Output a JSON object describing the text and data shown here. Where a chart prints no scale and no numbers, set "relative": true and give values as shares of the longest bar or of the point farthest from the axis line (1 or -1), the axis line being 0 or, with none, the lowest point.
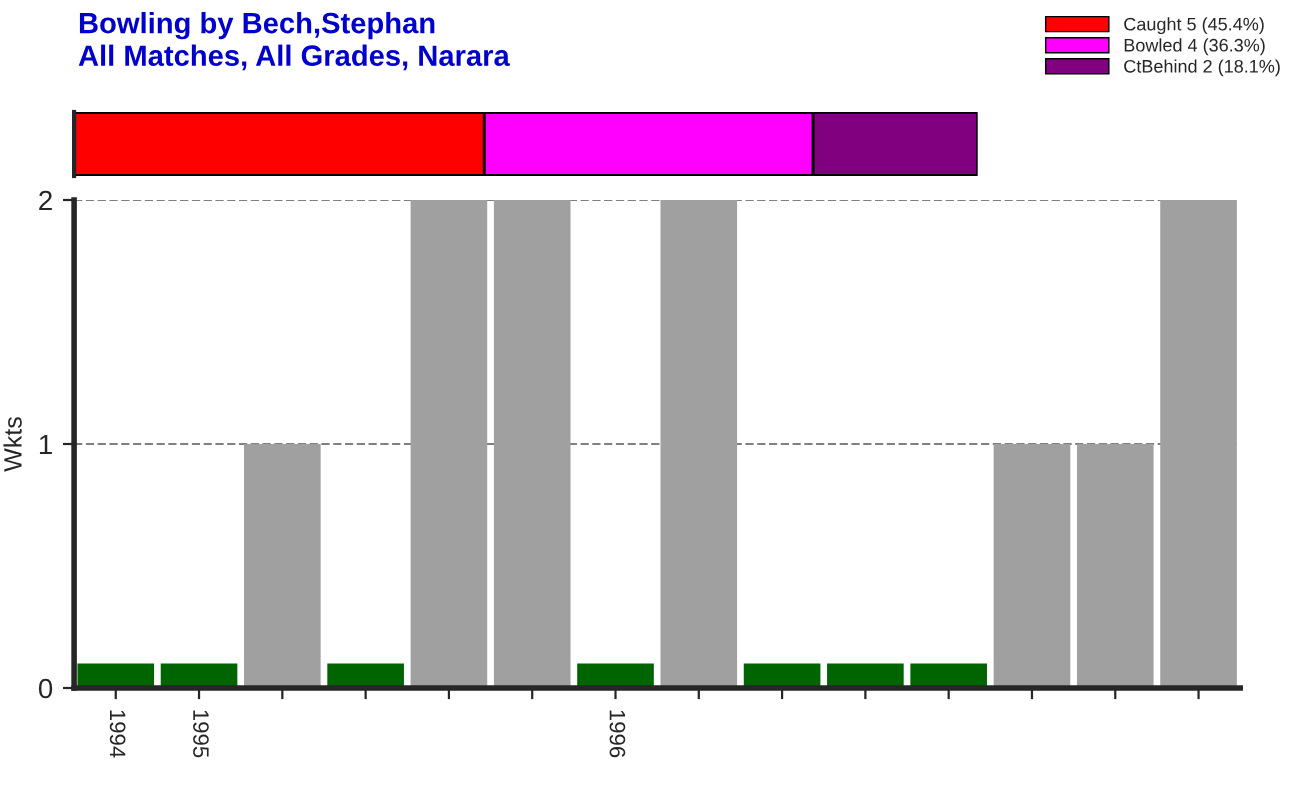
{
  "chart_data": [
    {
      "type": "bar",
      "orientation": "horizontal",
      "stacked": true,
      "relative": true,
      "title": "Bowling by Bech,Stephan\nAll Matches, All Grades, Narara",
      "categories": [
        null
      ],
      "legend": "top right",
      "series": [
        {
          "name": "Caught 5 (45.4%)",
          "color": "#ff0000",
          "values": [
            0.454
          ]
        },
        {
          "name": "Bowled 4 (36.3%)",
          "color": "#ff00ff",
          "values": [
            0.364
          ]
        },
        {
          "name": "CtBehind 2 (18.1%)",
          "color": "#800080",
          "values": [
            0.182
          ]
        }
      ]
    },
    {
      "type": "bar",
      "ylabel": "Wkts",
      "categories": [
        "1994",
        "1995",
        null,
        null,
        null,
        null,
        "1996",
        null,
        null,
        null,
        null,
        null,
        null,
        null
      ],
      "values": [
        0.1,
        0.1,
        1,
        0.1,
        2,
        2,
        0.1,
        2,
        0.1,
        0.1,
        0.1,
        1,
        1,
        2
      ],
      "colors": [
        "#006400",
        "#006400",
        "#a0a0a0",
        "#006400",
        "#a0a0a0",
        "#a0a0a0",
        "#006400",
        "#a0a0a0",
        "#006400",
        "#006400",
        "#006400",
        "#a0a0a0",
        "#a0a0a0",
        "#a0a0a0"
      ],
      "ylim": [
        0,
        2
      ],
      "yticks": [
        0,
        1,
        2
      ],
      "grid": "y"
    }
  ]
}
